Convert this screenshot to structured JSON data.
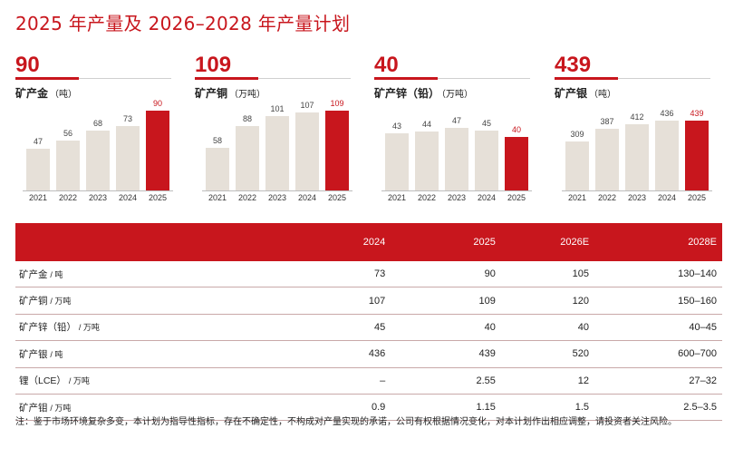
{
  "title": "2025 年产量及 2026–2028 年产量计划",
  "colors": {
    "accent": "#c8161d",
    "bar": "#e6e0d8"
  },
  "chart_data": [
    {
      "type": "bar",
      "headline": "90",
      "label": "矿产金",
      "unit": "（吨）",
      "categories": [
        "2021",
        "2022",
        "2023",
        "2024",
        "2025"
      ],
      "values": [
        47,
        56,
        68,
        73,
        90
      ],
      "highlight_index": 4,
      "ylim": [
        0,
        90
      ]
    },
    {
      "type": "bar",
      "headline": "109",
      "label": "矿产铜",
      "unit": "（万吨）",
      "categories": [
        "2021",
        "2022",
        "2023",
        "2024",
        "2025"
      ],
      "values": [
        58,
        88,
        101,
        107,
        109
      ],
      "highlight_index": 4,
      "ylim": [
        0,
        109
      ]
    },
    {
      "type": "bar",
      "headline": "40",
      "label": "矿产锌（铅）",
      "unit": "（万吨）",
      "categories": [
        "2021",
        "2022",
        "2023",
        "2024",
        "2025"
      ],
      "values": [
        43,
        44,
        47,
        45,
        40
      ],
      "highlight_index": 4,
      "ylim": [
        0,
        60
      ]
    },
    {
      "type": "bar",
      "headline": "439",
      "label": "矿产银",
      "unit": "（吨）",
      "categories": [
        "2021",
        "2022",
        "2023",
        "2024",
        "2025"
      ],
      "values": [
        309,
        387,
        412,
        436,
        439
      ],
      "highlight_index": 4,
      "ylim": [
        0,
        500
      ]
    }
  ],
  "table": {
    "headers": [
      "",
      "2024",
      "2025",
      "2026E",
      "2028E"
    ],
    "rows": [
      {
        "item": "矿产金",
        "unit": "/ 吨",
        "v": [
          "73",
          "90",
          "105",
          "130–140"
        ]
      },
      {
        "item": "矿产铜",
        "unit": "/ 万吨",
        "v": [
          "107",
          "109",
          "120",
          "150–160"
        ]
      },
      {
        "item": "矿产锌（铅）",
        "unit": "/ 万吨",
        "v": [
          "45",
          "40",
          "40",
          "40–45"
        ]
      },
      {
        "item": "矿产银",
        "unit": "/ 吨",
        "v": [
          "436",
          "439",
          "520",
          "600–700"
        ]
      },
      {
        "item": "锂（LCE）",
        "unit": "/ 万吨",
        "v": [
          "–",
          "2.55",
          "12",
          "27–32"
        ]
      },
      {
        "item": "矿产钼",
        "unit": "/ 万吨",
        "v": [
          "0.9",
          "1.15",
          "1.5",
          "2.5–3.5"
        ]
      }
    ]
  },
  "note": "注：鉴于市场环境复杂多变，本计划为指导性指标，存在不确定性，不构成对产量实现的承诺，公司有权根据情况变化，对本计划作出相应调整，请投资者关注风险。"
}
